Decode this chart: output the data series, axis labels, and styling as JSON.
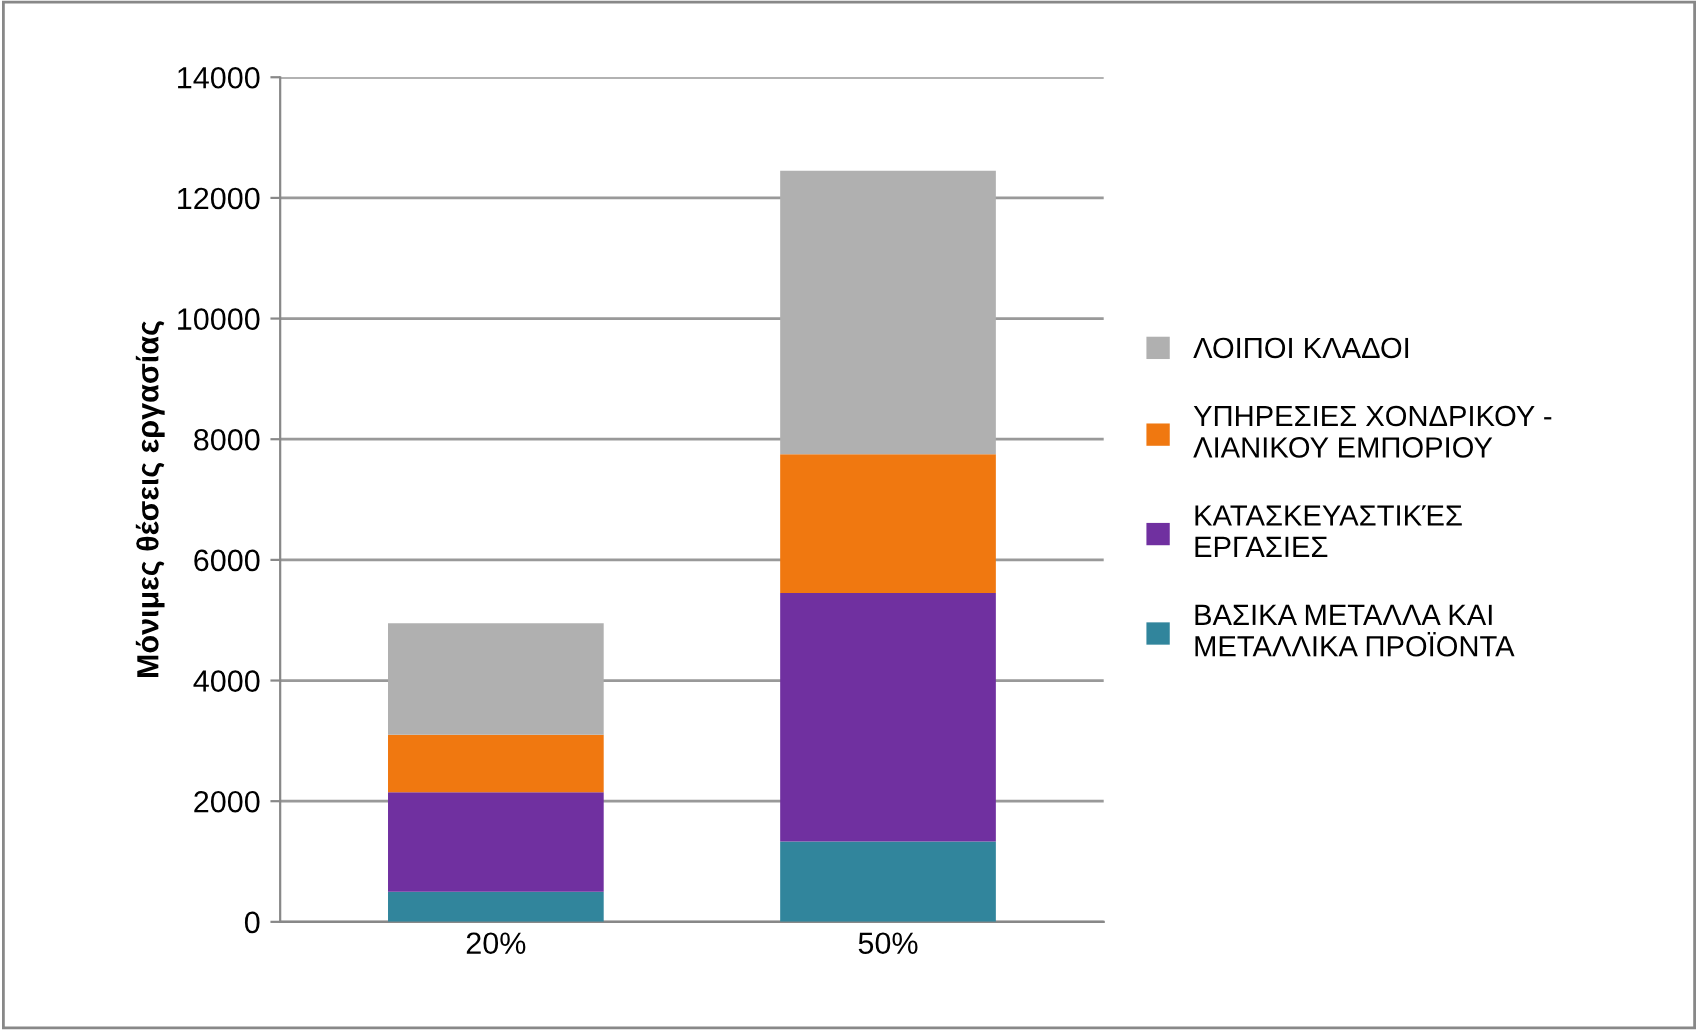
{
  "chart_data": {
    "type": "bar",
    "stacked": true,
    "ylabel": "Μόνιμες θέσεις εργασίας",
    "categories": [
      "20%",
      "50%"
    ],
    "series": [
      {
        "name": "ΒΑΣΙΚΑ ΜΕΤΑΛΛΑ ΚΑΙ\nΜΕΤΑΛΛΙΚΑ ΠΡΟΪΟΝΤΑ",
        "color": "#31859c",
        "values": [
          500,
          1330
        ]
      },
      {
        "name": "ΚΑΤΑΣΚΕΥΑΣΤΙΚΈΣ\nΕΡΓΑΣΙΕΣ",
        "color": "#7030a0",
        "values": [
          1650,
          4120
        ]
      },
      {
        "name": "ΥΠΗΡΕΣΙΕΣ ΧΟΝΔΡΙΚΟΥ -\nΛΙΑΝΙΚΟΥ ΕΜΠΟΡΙΟΥ",
        "color": "#f07810",
        "values": [
          950,
          2300
        ]
      },
      {
        "name": "ΛΟΙΠΟΙ ΚΛΑΔΟΙ",
        "color": "#b0b0b0",
        "values": [
          1850,
          4700
        ]
      }
    ],
    "ylim": [
      0,
      14000
    ],
    "yticks": [
      0,
      2000,
      4000,
      6000,
      8000,
      10000,
      12000,
      14000
    ],
    "grid": "y",
    "legend": "right"
  }
}
